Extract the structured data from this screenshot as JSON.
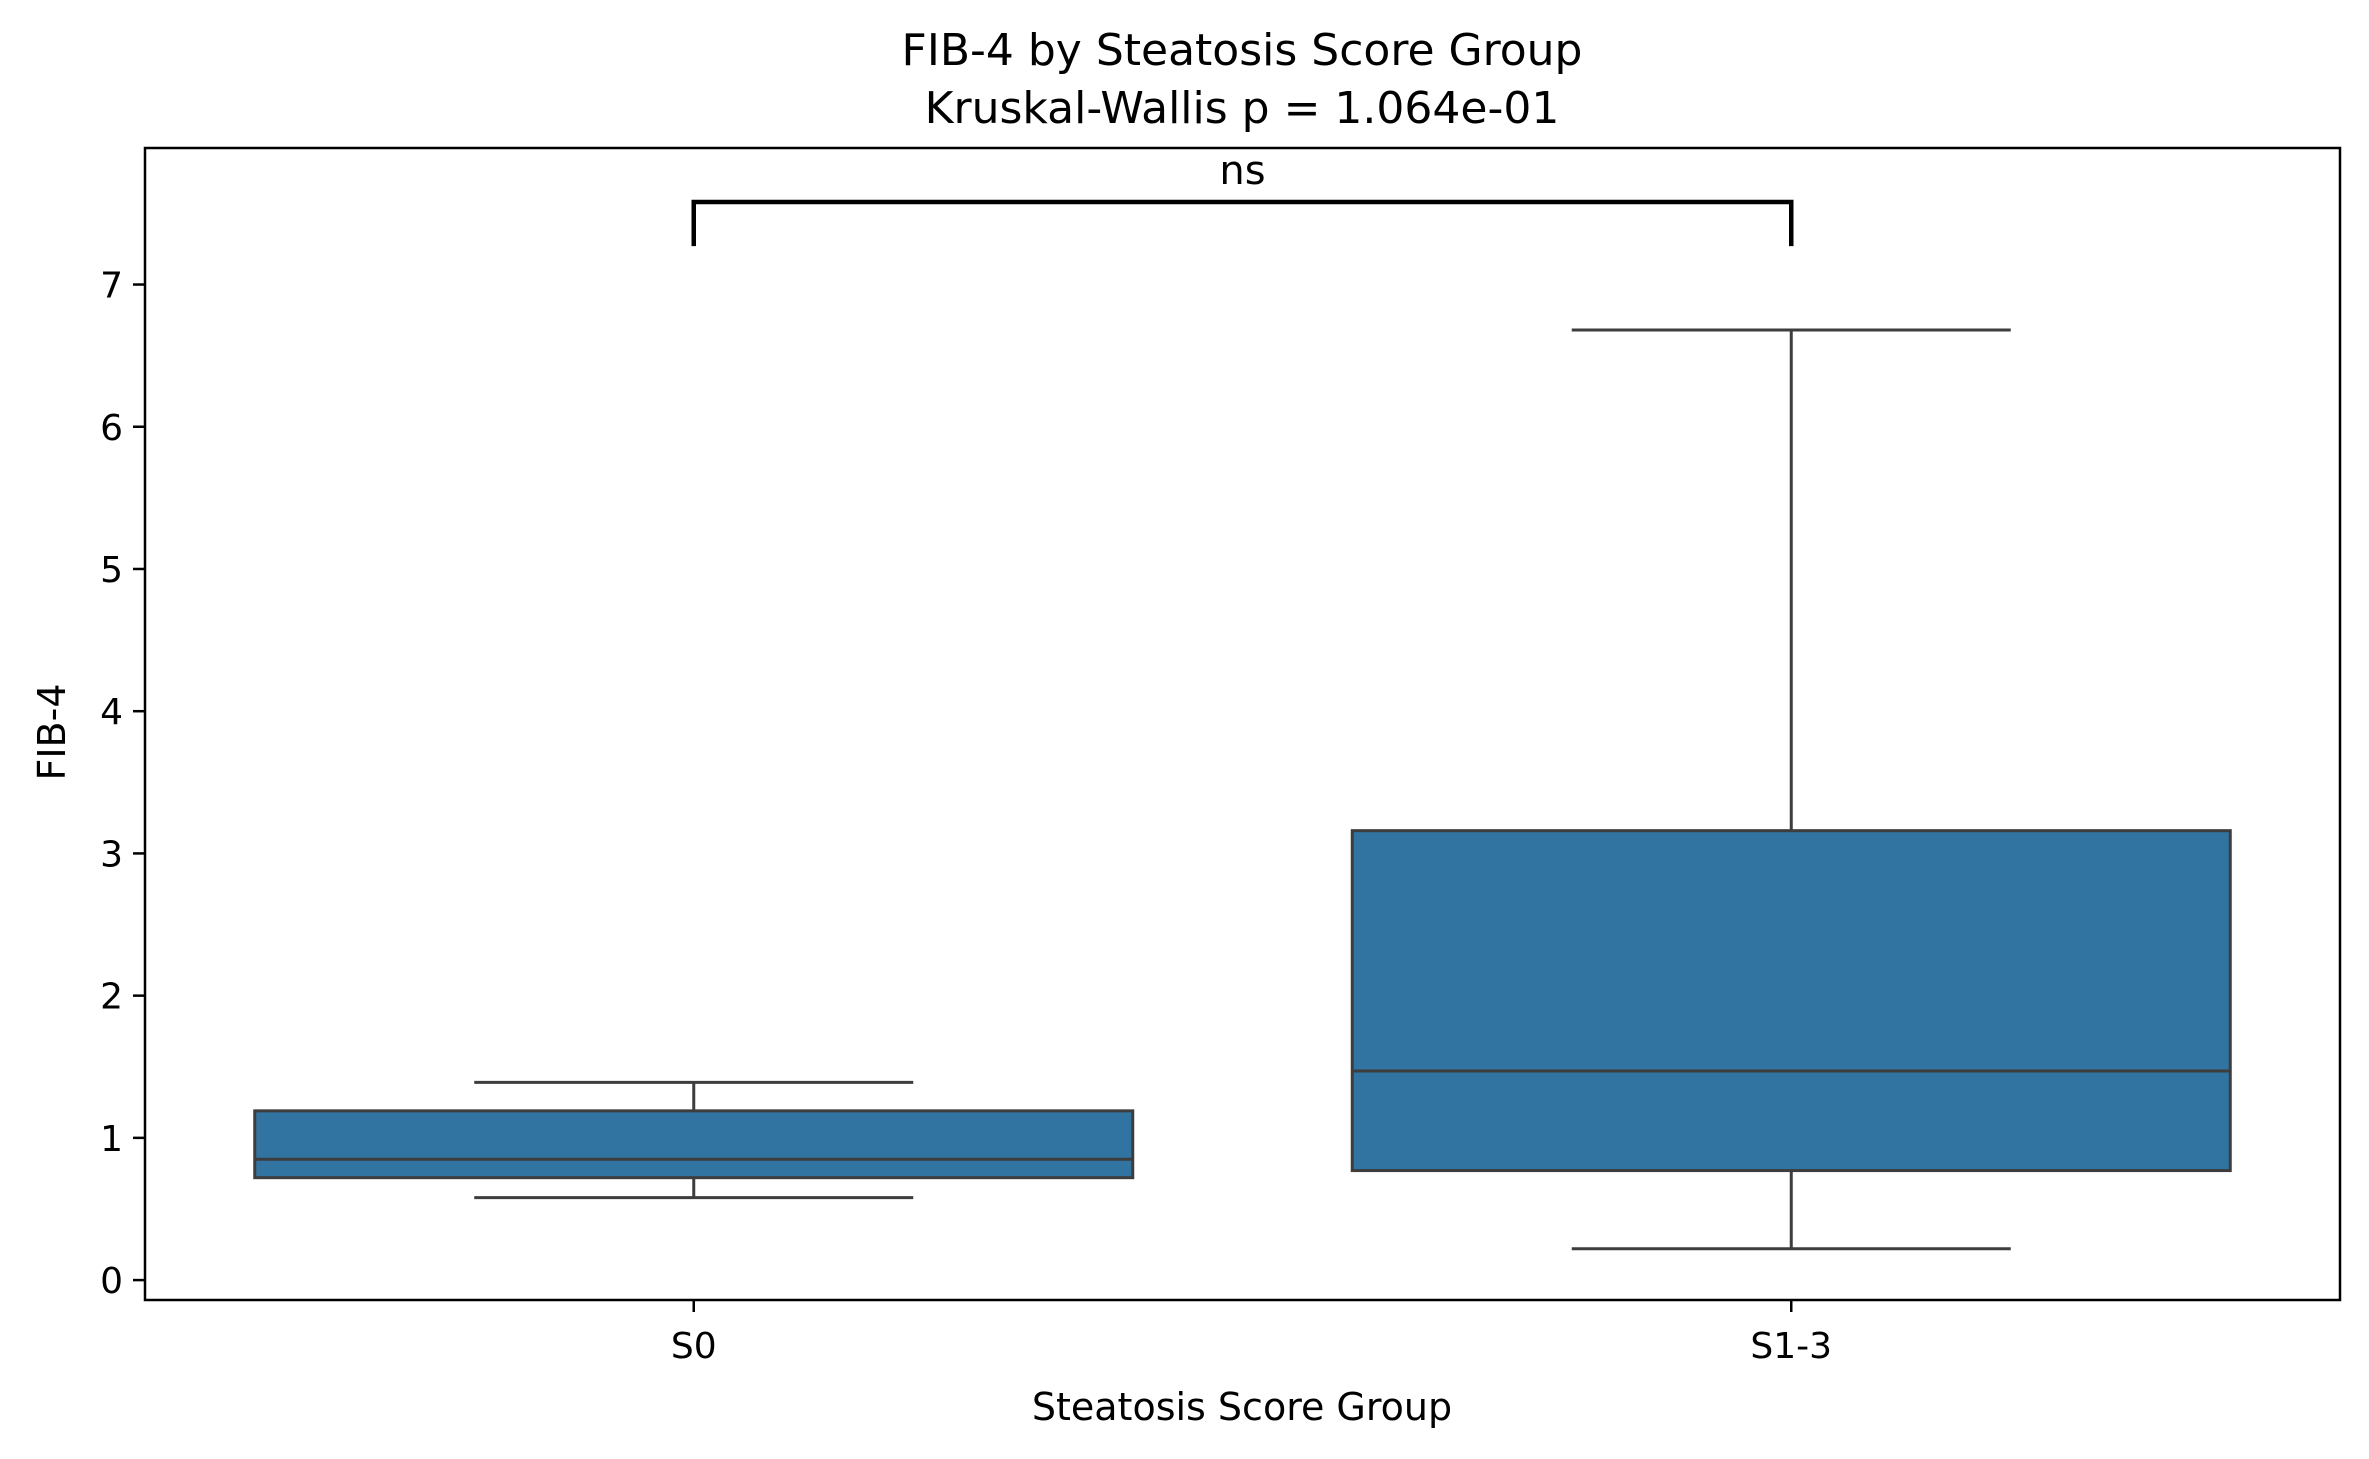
{
  "chart_data": {
    "type": "box",
    "title": "FIB-4 by Steatosis Score Group",
    "subtitle": "Kruskal-Wallis p = 1.064e-01",
    "xlabel": "Steatosis Score Group",
    "ylabel": "FIB-4",
    "categories": [
      "S0",
      "S1-3"
    ],
    "boxes": [
      {
        "category": "S0",
        "whisker_low": 0.58,
        "q1": 0.72,
        "median": 0.85,
        "q3": 1.19,
        "whisker_high": 1.39
      },
      {
        "category": "S1-3",
        "whisker_low": 0.22,
        "q1": 0.77,
        "median": 1.47,
        "q3": 3.16,
        "whisker_high": 6.68
      }
    ],
    "ylim": [
      -0.14,
      7.96
    ],
    "yticks": [
      0,
      1,
      2,
      3,
      4,
      5,
      6,
      7
    ],
    "box_color": "#3274a1",
    "line_color": "#3d3d3d",
    "grid": false,
    "annotations": [
      {
        "type": "significance-bracket",
        "from": "S0",
        "to": "S1-3",
        "label": "ns",
        "y_low": 7.27,
        "y_high": 7.58
      }
    ]
  }
}
